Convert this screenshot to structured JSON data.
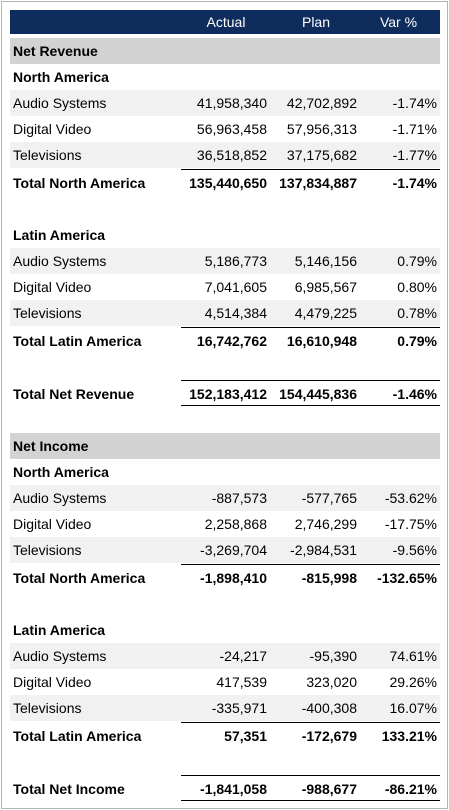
{
  "header": {
    "col_actual": "Actual",
    "col_plan": "Plan",
    "col_var": "Var %"
  },
  "s1": {
    "title": "Net Revenue",
    "na": {
      "title": "North America",
      "rows": [
        {
          "label": "Audio Systems",
          "actual": "41,958,340",
          "plan": "42,702,892",
          "var": "-1.74%"
        },
        {
          "label": "Digital Video",
          "actual": "56,963,458",
          "plan": "57,956,313",
          "var": "-1.71%"
        },
        {
          "label": "Televisions",
          "actual": "36,518,852",
          "plan": "37,175,682",
          "var": "-1.77%"
        }
      ],
      "total": {
        "label": "Total North America",
        "actual": "135,440,650",
        "plan": "137,834,887",
        "var": "-1.74%"
      }
    },
    "la": {
      "title": "Latin America",
      "rows": [
        {
          "label": "Audio Systems",
          "actual": "5,186,773",
          "plan": "5,146,156",
          "var": "0.79%"
        },
        {
          "label": "Digital Video",
          "actual": "7,041,605",
          "plan": "6,985,567",
          "var": "0.80%"
        },
        {
          "label": "Televisions",
          "actual": "4,514,384",
          "plan": "4,479,225",
          "var": "0.78%"
        }
      ],
      "total": {
        "label": "Total Latin America",
        "actual": "16,742,762",
        "plan": "16,610,948",
        "var": "0.79%"
      }
    },
    "grand": {
      "label": "Total Net Revenue",
      "actual": "152,183,412",
      "plan": "154,445,836",
      "var": "-1.46%"
    }
  },
  "s2": {
    "title": "Net Income",
    "na": {
      "title": "North America",
      "rows": [
        {
          "label": "Audio Systems",
          "actual": "-887,573",
          "plan": "-577,765",
          "var": "-53.62%"
        },
        {
          "label": "Digital Video",
          "actual": "2,258,868",
          "plan": "2,746,299",
          "var": "-17.75%"
        },
        {
          "label": "Televisions",
          "actual": "-3,269,704",
          "plan": "-2,984,531",
          "var": "-9.56%"
        }
      ],
      "total": {
        "label": "Total North America",
        "actual": "-1,898,410",
        "plan": "-815,998",
        "var": "-132.65%"
      }
    },
    "la": {
      "title": "Latin America",
      "rows": [
        {
          "label": "Audio Systems",
          "actual": "-24,217",
          "plan": "-95,390",
          "var": "74.61%"
        },
        {
          "label": "Digital Video",
          "actual": "417,539",
          "plan": "323,020",
          "var": "29.26%"
        },
        {
          "label": "Televisions",
          "actual": "-335,971",
          "plan": "-400,308",
          "var": "16.07%"
        }
      ],
      "total": {
        "label": "Total Latin America",
        "actual": "57,351",
        "plan": "-172,679",
        "var": "133.21%"
      }
    },
    "grand": {
      "label": "Total Net Income",
      "actual": "-1,841,058",
      "plan": "-988,677",
      "var": "-86.21%"
    }
  }
}
